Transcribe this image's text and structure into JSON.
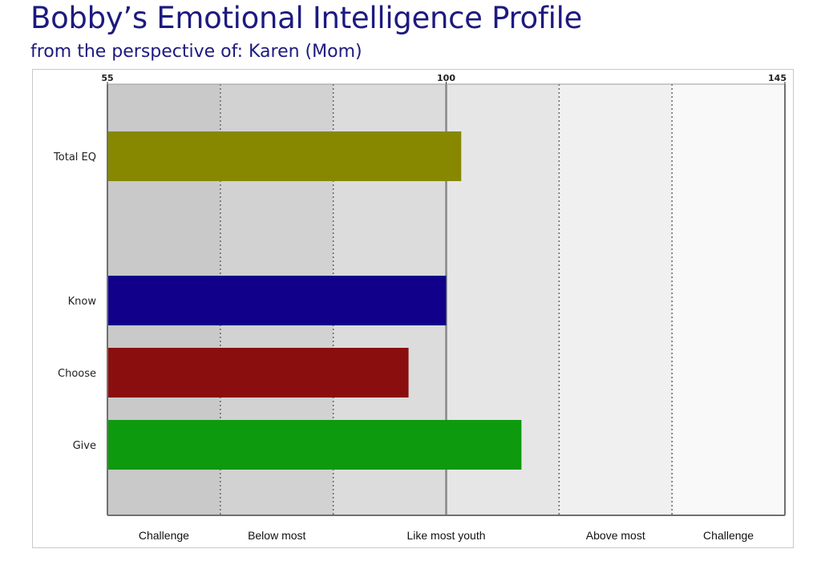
{
  "header": {
    "title": "Bobby’s Emotional Intelligence Profile",
    "subtitle": "from the perspective of: Karen (Mom)"
  },
  "chart_data": {
    "type": "bar",
    "orientation": "horizontal",
    "categories": [
      "Total EQ",
      "Know",
      "Choose",
      "Give"
    ],
    "values": [
      102,
      100,
      95,
      110
    ],
    "colors": [
      "#878800",
      "#10008a",
      "#8a0e0e",
      "#0e9a0e"
    ],
    "xlim": [
      55,
      145
    ],
    "ticks": [
      {
        "value": 55,
        "label": "55"
      },
      {
        "value": 100,
        "label": "100"
      },
      {
        "value": 145,
        "label": "145"
      }
    ],
    "band_boundaries": [
      55,
      70,
      85,
      100,
      115,
      130,
      145
    ],
    "bands": [
      "Challenge",
      "Below most",
      "Like most youth",
      "Above most",
      "Challenge"
    ],
    "band_colors": [
      "#c9c9c9",
      "#d2d2d2",
      "#dcdcdc",
      "#e6e6e6",
      "#f0f0f0",
      "#f9f9f9"
    ],
    "axis_color": "#707070"
  }
}
